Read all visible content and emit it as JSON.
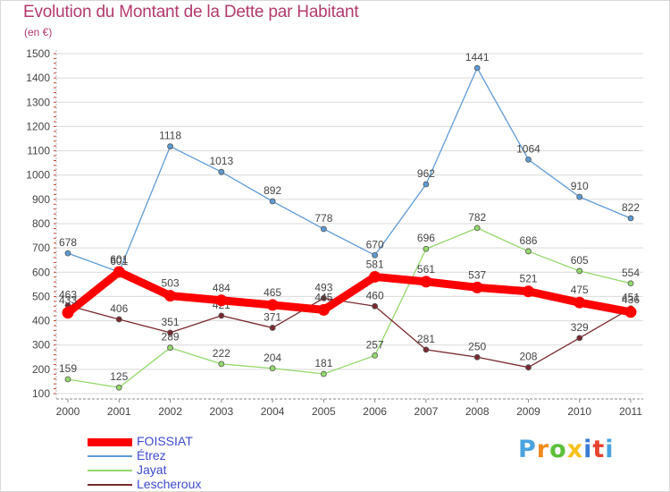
{
  "header": {
    "title": "Evolution du Montant de la Dette par Habitant",
    "subtitle": "(en €)"
  },
  "colors": {
    "title": "#b33a6e",
    "grid": "#d9d9d9",
    "axis": "#555555",
    "legend_text": "#3b4bd0"
  },
  "logo": {
    "text": "Proxiti",
    "letter_colors": [
      "#4aa3df",
      "#f08a1e",
      "#5bbf3a",
      "#f5c21a",
      "#3a7bd5",
      "#e8432e",
      "#4aa3df"
    ]
  },
  "chart_data": {
    "type": "line",
    "title": "Evolution du Montant de la Dette par Habitant",
    "subtitle": "(en €)",
    "xlabel": "",
    "ylabel": "",
    "x": [
      2000,
      2001,
      2002,
      2003,
      2004,
      2005,
      2006,
      2007,
      2008,
      2009,
      2010,
      2011
    ],
    "ylim": [
      100,
      1500
    ],
    "yticks": [
      100,
      200,
      300,
      400,
      500,
      600,
      700,
      800,
      900,
      1000,
      1100,
      1200,
      1300,
      1400,
      1500
    ],
    "grid": true,
    "legend_position": "bottom-left",
    "series": [
      {
        "name": "FOISSIAT",
        "color": "#ff0000",
        "values": [
          433,
          601,
          503,
          484,
          465,
          445,
          581,
          561,
          537,
          521,
          475,
          436
        ],
        "emphasis": true
      },
      {
        "name": "Étrez",
        "color": "#5d9bd6",
        "values": [
          678,
          601,
          1118,
          1013,
          892,
          778,
          670,
          962,
          1441,
          1064,
          910,
          822
        ]
      },
      {
        "name": "Jayat",
        "color": "#93d96b",
        "values": [
          159,
          125,
          289,
          222,
          204,
          181,
          257,
          696,
          782,
          686,
          605,
          554
        ]
      },
      {
        "name": "Lescheroux",
        "color": "#7a2a2f",
        "values": [
          463,
          406,
          351,
          421,
          371,
          493,
          460,
          281,
          250,
          208,
          329,
          451
        ]
      }
    ]
  }
}
